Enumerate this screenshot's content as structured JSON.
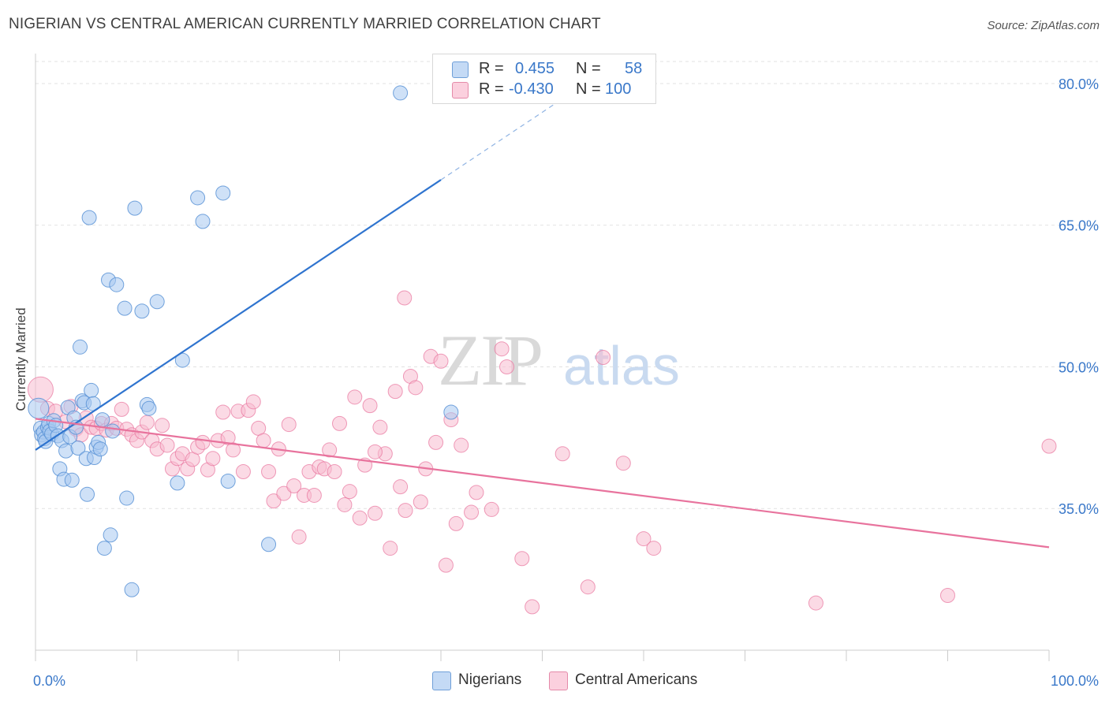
{
  "header": {
    "title": "NIGERIAN VS CENTRAL AMERICAN CURRENTLY MARRIED CORRELATION CHART",
    "source": "Source: ZipAtlas.com"
  },
  "watermark": {
    "zip": "ZIP",
    "atlas": "atlas"
  },
  "legend": {
    "rows": [
      {
        "r_label": "R =",
        "r_value": "0.455",
        "n_label": "N =",
        "n_value": "58",
        "color": "#a8c8f0"
      },
      {
        "r_label": "R =",
        "r_value": "-0.430",
        "n_label": "N =",
        "n_value": "100",
        "color": "#f8bcd0"
      }
    ]
  },
  "bottom_legend": [
    "Nigerians",
    "Central Americans"
  ],
  "chart_data": {
    "type": "scatter",
    "title": "NIGERIAN VS CENTRAL AMERICAN CURRENTLY MARRIED CORRELATION CHART",
    "xlabel": "",
    "ylabel": "Currently Married",
    "x_tick_labels": [
      "0.0%",
      "100.0%"
    ],
    "y_tick_labels": [
      "80.0%",
      "65.0%",
      "50.0%",
      "35.0%"
    ],
    "y_ticks": [
      80,
      65,
      50,
      35
    ],
    "xlim": [
      0,
      100
    ],
    "ylim": [
      20,
      83
    ],
    "grid": true,
    "colors": {
      "nigerians": "#5b93d6",
      "nigerians_fill": "#a8c8f0",
      "central": "#e8739d",
      "central_fill": "#f8bcd0"
    },
    "series": [
      {
        "name": "Nigerians",
        "trend": {
          "x": [
            0,
            40
          ],
          "y": [
            41.2,
            69.8
          ],
          "dashed_to": {
            "x": 53,
            "y": 79.1
          }
        },
        "points": [
          [
            0.3,
            45.6
          ],
          [
            0.5,
            43.5
          ],
          [
            0.6,
            42.8
          ],
          [
            0.8,
            43.1
          ],
          [
            0.9,
            42.4
          ],
          [
            1.0,
            42.1
          ],
          [
            1.2,
            43.6
          ],
          [
            1.3,
            44.0
          ],
          [
            1.4,
            43.2
          ],
          [
            1.6,
            42.9
          ],
          [
            1.8,
            44.3
          ],
          [
            2.0,
            43.8
          ],
          [
            2.2,
            42.7
          ],
          [
            2.4,
            39.2
          ],
          [
            2.6,
            42.2
          ],
          [
            2.8,
            38.1
          ],
          [
            3.0,
            41.1
          ],
          [
            3.2,
            45.7
          ],
          [
            3.4,
            42.6
          ],
          [
            3.6,
            38.0
          ],
          [
            3.8,
            44.6
          ],
          [
            4.0,
            43.6
          ],
          [
            4.2,
            41.4
          ],
          [
            4.4,
            52.1
          ],
          [
            4.6,
            46.4
          ],
          [
            4.8,
            46.2
          ],
          [
            5.0,
            40.3
          ],
          [
            5.1,
            36.5
          ],
          [
            5.3,
            65.8
          ],
          [
            5.5,
            47.5
          ],
          [
            5.7,
            46.1
          ],
          [
            5.8,
            40.4
          ],
          [
            6.0,
            41.5
          ],
          [
            6.2,
            42.0
          ],
          [
            6.4,
            41.3
          ],
          [
            6.6,
            44.4
          ],
          [
            6.8,
            30.8
          ],
          [
            7.2,
            59.2
          ],
          [
            7.4,
            32.2
          ],
          [
            7.6,
            43.2
          ],
          [
            8.0,
            58.7
          ],
          [
            8.8,
            56.2
          ],
          [
            9.0,
            36.1
          ],
          [
            9.5,
            26.4
          ],
          [
            9.8,
            66.8
          ],
          [
            10.5,
            55.9
          ],
          [
            11.0,
            46.0
          ],
          [
            11.2,
            45.6
          ],
          [
            12.0,
            56.9
          ],
          [
            14.0,
            37.7
          ],
          [
            14.5,
            50.7
          ],
          [
            16.0,
            67.9
          ],
          [
            16.5,
            65.4
          ],
          [
            18.5,
            68.4
          ],
          [
            19.0,
            37.9
          ],
          [
            23.0,
            31.2
          ],
          [
            36.0,
            79.0
          ],
          [
            41.0,
            45.2
          ]
        ]
      },
      {
        "name": "Central Americans",
        "trend": {
          "x": [
            0,
            100
          ],
          "y": [
            44.5,
            30.9
          ]
        },
        "points": [
          [
            0.5,
            47.6
          ],
          [
            1.2,
            45.6
          ],
          [
            2.0,
            45.3
          ],
          [
            3.0,
            44.2
          ],
          [
            3.5,
            45.8
          ],
          [
            4.0,
            43.4
          ],
          [
            4.5,
            42.8
          ],
          [
            5.0,
            44.6
          ],
          [
            5.5,
            43.6
          ],
          [
            6.0,
            43.5
          ],
          [
            6.5,
            44.0
          ],
          [
            7.0,
            43.3
          ],
          [
            7.5,
            44.0
          ],
          [
            8.0,
            43.5
          ],
          [
            8.5,
            45.5
          ],
          [
            9.0,
            43.4
          ],
          [
            9.5,
            42.8
          ],
          [
            10.0,
            42.2
          ],
          [
            10.5,
            43.1
          ],
          [
            11.0,
            44.1
          ],
          [
            11.5,
            42.2
          ],
          [
            12.0,
            41.3
          ],
          [
            12.5,
            43.8
          ],
          [
            13.0,
            41.7
          ],
          [
            13.5,
            39.2
          ],
          [
            14.0,
            40.3
          ],
          [
            14.5,
            40.8
          ],
          [
            15.0,
            39.2
          ],
          [
            15.5,
            40.2
          ],
          [
            16.0,
            41.5
          ],
          [
            16.5,
            42.0
          ],
          [
            17.0,
            39.1
          ],
          [
            17.5,
            40.3
          ],
          [
            18.0,
            42.2
          ],
          [
            18.5,
            45.2
          ],
          [
            19.0,
            42.5
          ],
          [
            19.5,
            41.2
          ],
          [
            20.0,
            45.3
          ],
          [
            20.5,
            38.9
          ],
          [
            21.0,
            45.4
          ],
          [
            21.5,
            46.3
          ],
          [
            22.0,
            43.5
          ],
          [
            22.5,
            42.2
          ],
          [
            23.0,
            38.9
          ],
          [
            23.5,
            35.8
          ],
          [
            24.0,
            41.3
          ],
          [
            24.5,
            36.6
          ],
          [
            25.0,
            43.9
          ],
          [
            25.5,
            37.4
          ],
          [
            26.0,
            32.0
          ],
          [
            26.5,
            36.4
          ],
          [
            27.0,
            38.9
          ],
          [
            27.5,
            36.4
          ],
          [
            28.0,
            39.4
          ],
          [
            28.5,
            39.2
          ],
          [
            29.0,
            41.2
          ],
          [
            29.5,
            38.9
          ],
          [
            30.0,
            44.0
          ],
          [
            30.5,
            35.4
          ],
          [
            31.0,
            36.8
          ],
          [
            31.5,
            46.8
          ],
          [
            32.0,
            34.0
          ],
          [
            32.5,
            39.6
          ],
          [
            33.0,
            45.9
          ],
          [
            33.5,
            34.5
          ],
          [
            34.0,
            43.6
          ],
          [
            34.5,
            40.8
          ],
          [
            35.0,
            30.8
          ],
          [
            35.5,
            47.4
          ],
          [
            36.0,
            37.3
          ],
          [
            36.5,
            34.8
          ],
          [
            37.0,
            49.0
          ],
          [
            37.5,
            47.8
          ],
          [
            38.0,
            35.7
          ],
          [
            38.5,
            39.2
          ],
          [
            39.0,
            51.1
          ],
          [
            39.5,
            42.0
          ],
          [
            40.0,
            50.6
          ],
          [
            40.5,
            29.0
          ],
          [
            41.0,
            44.4
          ],
          [
            41.5,
            33.4
          ],
          [
            42.0,
            41.7
          ],
          [
            43.0,
            34.6
          ],
          [
            43.5,
            36.7
          ],
          [
            45.0,
            34.9
          ],
          [
            46.0,
            51.9
          ],
          [
            46.5,
            50.0
          ],
          [
            48.0,
            29.7
          ],
          [
            49.0,
            24.6
          ],
          [
            52.0,
            40.8
          ],
          [
            54.5,
            26.7
          ],
          [
            56.0,
            51.0
          ],
          [
            58.0,
            39.8
          ],
          [
            60.0,
            31.8
          ],
          [
            61.0,
            30.8
          ],
          [
            36.4,
            57.3
          ],
          [
            77.0,
            25.0
          ],
          [
            90.0,
            25.8
          ],
          [
            100.0,
            41.6
          ],
          [
            33.5,
            41.0
          ]
        ]
      }
    ]
  }
}
